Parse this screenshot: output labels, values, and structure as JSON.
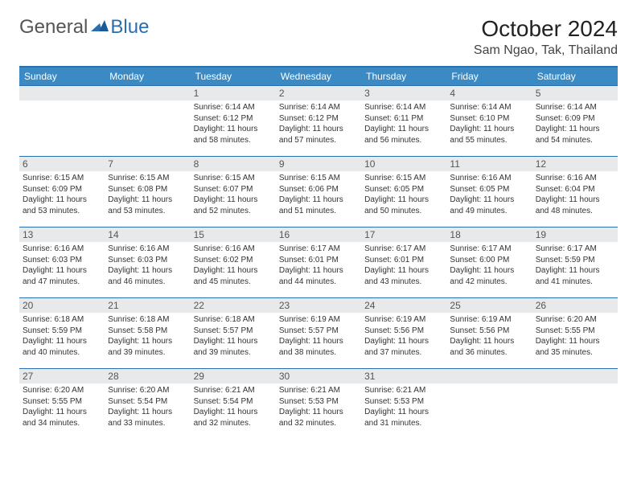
{
  "brand": {
    "text1": "General",
    "text2": "Blue",
    "logo_color": "#2a6faf"
  },
  "title": "October 2024",
  "location": "Sam Ngao, Tak, Thailand",
  "header_bg": "#3b8ac4",
  "header_border": "#2a6faf",
  "daynum_bg": "#e7e9ea",
  "text_color": "#333333",
  "background_color": "#ffffff",
  "font_size_title": 28,
  "font_size_location": 16,
  "font_size_header": 12,
  "font_size_cell": 10,
  "day_headers": [
    "Sunday",
    "Monday",
    "Tuesday",
    "Wednesday",
    "Thursday",
    "Friday",
    "Saturday"
  ],
  "weeks": [
    [
      null,
      null,
      {
        "n": "1",
        "sr": "Sunrise: 6:14 AM",
        "ss": "Sunset: 6:12 PM",
        "d1": "Daylight: 11 hours",
        "d2": "and 58 minutes."
      },
      {
        "n": "2",
        "sr": "Sunrise: 6:14 AM",
        "ss": "Sunset: 6:12 PM",
        "d1": "Daylight: 11 hours",
        "d2": "and 57 minutes."
      },
      {
        "n": "3",
        "sr": "Sunrise: 6:14 AM",
        "ss": "Sunset: 6:11 PM",
        "d1": "Daylight: 11 hours",
        "d2": "and 56 minutes."
      },
      {
        "n": "4",
        "sr": "Sunrise: 6:14 AM",
        "ss": "Sunset: 6:10 PM",
        "d1": "Daylight: 11 hours",
        "d2": "and 55 minutes."
      },
      {
        "n": "5",
        "sr": "Sunrise: 6:14 AM",
        "ss": "Sunset: 6:09 PM",
        "d1": "Daylight: 11 hours",
        "d2": "and 54 minutes."
      }
    ],
    [
      {
        "n": "6",
        "sr": "Sunrise: 6:15 AM",
        "ss": "Sunset: 6:09 PM",
        "d1": "Daylight: 11 hours",
        "d2": "and 53 minutes."
      },
      {
        "n": "7",
        "sr": "Sunrise: 6:15 AM",
        "ss": "Sunset: 6:08 PM",
        "d1": "Daylight: 11 hours",
        "d2": "and 53 minutes."
      },
      {
        "n": "8",
        "sr": "Sunrise: 6:15 AM",
        "ss": "Sunset: 6:07 PM",
        "d1": "Daylight: 11 hours",
        "d2": "and 52 minutes."
      },
      {
        "n": "9",
        "sr": "Sunrise: 6:15 AM",
        "ss": "Sunset: 6:06 PM",
        "d1": "Daylight: 11 hours",
        "d2": "and 51 minutes."
      },
      {
        "n": "10",
        "sr": "Sunrise: 6:15 AM",
        "ss": "Sunset: 6:05 PM",
        "d1": "Daylight: 11 hours",
        "d2": "and 50 minutes."
      },
      {
        "n": "11",
        "sr": "Sunrise: 6:16 AM",
        "ss": "Sunset: 6:05 PM",
        "d1": "Daylight: 11 hours",
        "d2": "and 49 minutes."
      },
      {
        "n": "12",
        "sr": "Sunrise: 6:16 AM",
        "ss": "Sunset: 6:04 PM",
        "d1": "Daylight: 11 hours",
        "d2": "and 48 minutes."
      }
    ],
    [
      {
        "n": "13",
        "sr": "Sunrise: 6:16 AM",
        "ss": "Sunset: 6:03 PM",
        "d1": "Daylight: 11 hours",
        "d2": "and 47 minutes."
      },
      {
        "n": "14",
        "sr": "Sunrise: 6:16 AM",
        "ss": "Sunset: 6:03 PM",
        "d1": "Daylight: 11 hours",
        "d2": "and 46 minutes."
      },
      {
        "n": "15",
        "sr": "Sunrise: 6:16 AM",
        "ss": "Sunset: 6:02 PM",
        "d1": "Daylight: 11 hours",
        "d2": "and 45 minutes."
      },
      {
        "n": "16",
        "sr": "Sunrise: 6:17 AM",
        "ss": "Sunset: 6:01 PM",
        "d1": "Daylight: 11 hours",
        "d2": "and 44 minutes."
      },
      {
        "n": "17",
        "sr": "Sunrise: 6:17 AM",
        "ss": "Sunset: 6:01 PM",
        "d1": "Daylight: 11 hours",
        "d2": "and 43 minutes."
      },
      {
        "n": "18",
        "sr": "Sunrise: 6:17 AM",
        "ss": "Sunset: 6:00 PM",
        "d1": "Daylight: 11 hours",
        "d2": "and 42 minutes."
      },
      {
        "n": "19",
        "sr": "Sunrise: 6:17 AM",
        "ss": "Sunset: 5:59 PM",
        "d1": "Daylight: 11 hours",
        "d2": "and 41 minutes."
      }
    ],
    [
      {
        "n": "20",
        "sr": "Sunrise: 6:18 AM",
        "ss": "Sunset: 5:59 PM",
        "d1": "Daylight: 11 hours",
        "d2": "and 40 minutes."
      },
      {
        "n": "21",
        "sr": "Sunrise: 6:18 AM",
        "ss": "Sunset: 5:58 PM",
        "d1": "Daylight: 11 hours",
        "d2": "and 39 minutes."
      },
      {
        "n": "22",
        "sr": "Sunrise: 6:18 AM",
        "ss": "Sunset: 5:57 PM",
        "d1": "Daylight: 11 hours",
        "d2": "and 39 minutes."
      },
      {
        "n": "23",
        "sr": "Sunrise: 6:19 AM",
        "ss": "Sunset: 5:57 PM",
        "d1": "Daylight: 11 hours",
        "d2": "and 38 minutes."
      },
      {
        "n": "24",
        "sr": "Sunrise: 6:19 AM",
        "ss": "Sunset: 5:56 PM",
        "d1": "Daylight: 11 hours",
        "d2": "and 37 minutes."
      },
      {
        "n": "25",
        "sr": "Sunrise: 6:19 AM",
        "ss": "Sunset: 5:56 PM",
        "d1": "Daylight: 11 hours",
        "d2": "and 36 minutes."
      },
      {
        "n": "26",
        "sr": "Sunrise: 6:20 AM",
        "ss": "Sunset: 5:55 PM",
        "d1": "Daylight: 11 hours",
        "d2": "and 35 minutes."
      }
    ],
    [
      {
        "n": "27",
        "sr": "Sunrise: 6:20 AM",
        "ss": "Sunset: 5:55 PM",
        "d1": "Daylight: 11 hours",
        "d2": "and 34 minutes."
      },
      {
        "n": "28",
        "sr": "Sunrise: 6:20 AM",
        "ss": "Sunset: 5:54 PM",
        "d1": "Daylight: 11 hours",
        "d2": "and 33 minutes."
      },
      {
        "n": "29",
        "sr": "Sunrise: 6:21 AM",
        "ss": "Sunset: 5:54 PM",
        "d1": "Daylight: 11 hours",
        "d2": "and 32 minutes."
      },
      {
        "n": "30",
        "sr": "Sunrise: 6:21 AM",
        "ss": "Sunset: 5:53 PM",
        "d1": "Daylight: 11 hours",
        "d2": "and 32 minutes."
      },
      {
        "n": "31",
        "sr": "Sunrise: 6:21 AM",
        "ss": "Sunset: 5:53 PM",
        "d1": "Daylight: 11 hours",
        "d2": "and 31 minutes."
      },
      null,
      null
    ]
  ]
}
